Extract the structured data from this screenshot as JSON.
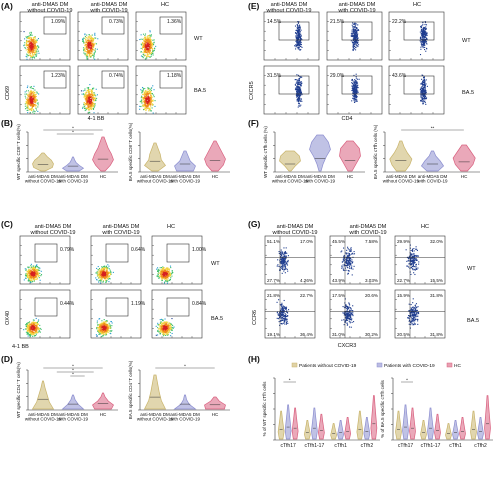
{
  "panel_letters": {
    "A": "(A)",
    "B": "(B)",
    "C": "(C)",
    "D": "(D)",
    "E": "(E)",
    "F": "(F)",
    "G": "(G)",
    "H": "(H)"
  },
  "group_titles_DMA5": [
    "anti-DMA5 DM\nwithout COVID-19",
    "anti-DMA5 DM\nwith COVID-19",
    "HC"
  ],
  "group_titles_MDA5_B": [
    "anti-MDA5 DM\nwithout COVID-19",
    "anti-MDA5 DM\nwith COVID-19",
    "HC"
  ],
  "row_labels": [
    "WT",
    "BA.5"
  ],
  "panelA": {
    "axis_x": "4-1 BB",
    "axis_y": "CD69",
    "gates": [
      [
        "1.09%",
        "0.73%",
        "1.36%"
      ],
      [
        "1.23%",
        "0.74%",
        "1.18%"
      ]
    ]
  },
  "panelB": {
    "left_ylabel": "WT specific CD8⁺T cells(%)",
    "right_ylabel": "BA.5 specific CD8⁺T cells(%)",
    "xlabels": [
      "anti-MDA5 DM\nwithout COVID-19",
      "anti-MDA5 DM\nwith COVID-19",
      "HC"
    ],
    "sig_left": [
      "*",
      "*"
    ]
  },
  "panelC": {
    "axis_x": "4-1 BB",
    "axis_y": "OX40",
    "gates": [
      [
        "0.79%",
        "0.64%",
        "1.00%"
      ],
      [
        "0.44%",
        "1.19%",
        "0.84%"
      ]
    ]
  },
  "panelD": {
    "left_ylabel": "WT specific CD4⁺T cells(%)",
    "right_ylabel": "BA.5 specific CD4⁺T cells(%)",
    "xlabels": [
      "anti-MDA5 DM\nwithout COVID-19",
      "anti-MDA5 DM\nwith COVID-19",
      "HC"
    ],
    "sig_left": [
      "*",
      "*",
      "*"
    ],
    "sig_right": [
      "*"
    ]
  },
  "panelE": {
    "axis_x": "CD4",
    "axis_y": "CXCR5",
    "gates": [
      [
        "14.5%",
        "21.5%",
        "22.2%"
      ],
      [
        "31.5%",
        "29.0%",
        "43.6%"
      ]
    ]
  },
  "panelF": {
    "left_ylabel": "WT specific cTfh cells (%)",
    "right_ylabel": "BA.5 specific cTfh cells (%)",
    "xlabels": [
      "anti-MDA5 DM\nwithout COVID-19",
      "anti-MDA5 DM\nwith COVID-19",
      "HC"
    ],
    "sig_right": [
      "**"
    ]
  },
  "panelG": {
    "axis_x": "CXCR3",
    "axis_y": "CCR6",
    "quadrants": [
      [
        [
          "51.1%",
          "17.0%",
          "27.7%",
          "4.26%"
        ],
        [
          "45.5%",
          "7.58%",
          "43.9%",
          "3.03%"
        ],
        [
          "29.9%",
          "32.0%",
          "22.7%",
          "15.5%"
        ]
      ],
      [
        [
          "21.8%",
          "22.7%",
          "19.1%",
          "36.4%"
        ],
        [
          "17.5%",
          "20.6%",
          "31.0%",
          "30.2%"
        ],
        [
          "15.9%",
          "31.8%",
          "20.5%",
          "31.8%"
        ]
      ]
    ]
  },
  "panelH": {
    "legend": [
      "Patients without COVID-19",
      "Patients with COVID-19",
      "HC"
    ],
    "left_ylabel": "% of WT specific cTfh cells",
    "right_ylabel": "% of BA.5 specific cTfh cells",
    "categories": [
      "cTfh17",
      "cTfh1-17",
      "cTfh1",
      "cTfh2"
    ],
    "sig_left": [
      "*"
    ],
    "sig_right": [
      "*"
    ]
  },
  "colors": {
    "violin1": "#c9b46b",
    "violin2": "#8d8fd0",
    "violin3": "#d9607f",
    "dot": "#1f3d8f",
    "hot": "#d62020"
  }
}
